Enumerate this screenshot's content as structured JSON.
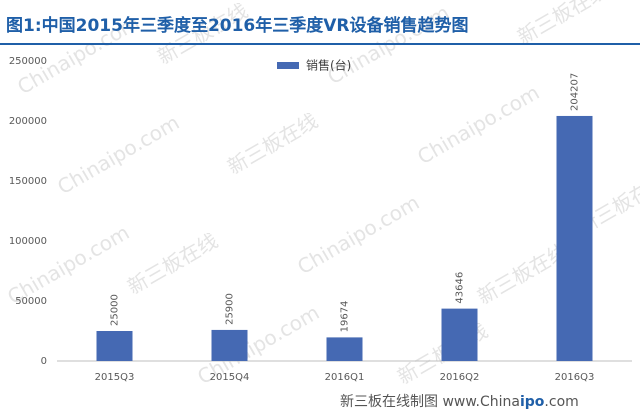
{
  "chart_data": {
    "type": "bar",
    "title": "图1:中国2015年三季度至2016年三季度VR设备销售趋势图",
    "categories": [
      "2015Q3",
      "2015Q4",
      "2016Q1",
      "2016Q2",
      "2016Q3"
    ],
    "series": [
      {
        "name": "销售(台)",
        "color": "#4569b3",
        "values": [
          25000,
          25900,
          19674,
          43646,
          204207
        ]
      }
    ],
    "ylim": [
      0,
      250000
    ],
    "yticks": [
      0,
      50000,
      100000,
      150000,
      200000,
      250000
    ],
    "grid": false,
    "legend": "top",
    "watermark": [
      "Chinaipo.com",
      "新三板在线"
    ],
    "footer": {
      "label": "新三板在线制图",
      "site_prefix": "www.China",
      "site_bold": "ipo",
      "site_suffix": ".com"
    }
  }
}
